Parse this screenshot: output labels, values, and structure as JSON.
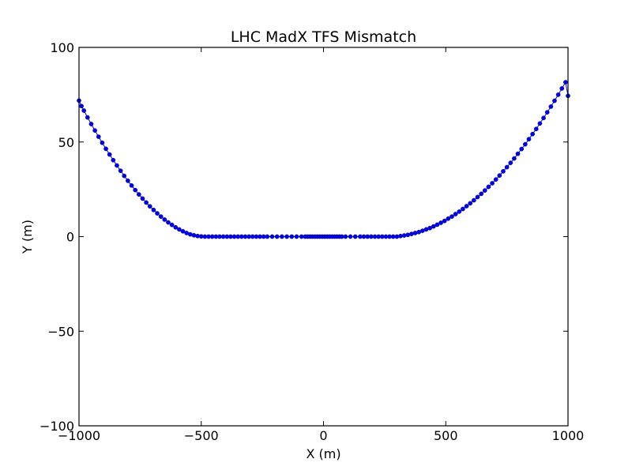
{
  "chart_data": {
    "type": "line",
    "title": "LHC MadX TFS Mismatch",
    "xlabel": "X (m)",
    "ylabel": "Y (m)",
    "xlim": [
      -1000,
      1000
    ],
    "ylim": [
      -100,
      100
    ],
    "xticks": [
      -1000,
      -500,
      0,
      500,
      1000
    ],
    "yticks": [
      -100,
      -50,
      0,
      50,
      100
    ],
    "xtick_labels": [
      "−1000",
      "−500",
      "0",
      "500",
      "1000"
    ],
    "ytick_labels": [
      "−100",
      "−50",
      "0",
      "50",
      "100"
    ],
    "grid": false,
    "series": [
      {
        "color": "#0000ff",
        "marker": "circle",
        "x": [
          -1000,
          -990,
          -980,
          -965,
          -950,
          -935,
          -920,
          -905,
          -890,
          -875,
          -860,
          -845,
          -830,
          -815,
          -800,
          -785,
          -770,
          -755,
          -740,
          -725,
          -710,
          -695,
          -680,
          -665,
          -650,
          -635,
          -620,
          -605,
          -590,
          -575,
          -560,
          -545,
          -530,
          -515,
          -500,
          -485,
          -470,
          -455,
          -440,
          -425,
          -410,
          -395,
          -380,
          -365,
          -350,
          -335,
          -320,
          -305,
          -290,
          -275,
          -260,
          -245,
          -230,
          -210,
          -190,
          -170,
          -150,
          -130,
          -110,
          -90,
          -75,
          -65,
          -55,
          -45,
          -35,
          -25,
          -15,
          -5,
          5,
          15,
          25,
          35,
          45,
          55,
          65,
          75,
          90,
          110,
          130,
          150,
          165,
          180,
          195,
          210,
          225,
          240,
          255,
          270,
          285,
          300,
          315,
          330,
          345,
          360,
          375,
          390,
          405,
          420,
          435,
          450,
          465,
          480,
          495,
          510,
          525,
          540,
          555,
          570,
          585,
          600,
          615,
          630,
          645,
          660,
          675,
          690,
          705,
          720,
          735,
          750,
          765,
          780,
          795,
          810,
          825,
          840,
          855,
          870,
          885,
          900,
          915,
          930,
          945,
          960,
          975,
          990,
          1000
        ],
        "y": [
          71.9,
          69.0,
          66.6,
          63.0,
          59.5,
          56.1,
          52.8,
          49.6,
          46.4,
          43.4,
          40.4,
          37.6,
          34.8,
          32.1,
          29.5,
          27.0,
          24.6,
          22.3,
          20.1,
          18.0,
          16.0,
          14.1,
          12.3,
          10.6,
          9.0,
          7.5,
          6.2,
          4.9,
          3.8,
          2.8,
          1.9,
          1.2,
          0.7,
          0.3,
          0.1,
          0.0,
          0.0,
          0.0,
          0.0,
          0.0,
          0.0,
          0.0,
          0.0,
          0.0,
          0.0,
          0.0,
          0.0,
          0.0,
          0.0,
          0.0,
          0.0,
          0.0,
          0.0,
          0.0,
          0.0,
          0.0,
          0.0,
          0.0,
          0.0,
          0.0,
          0.0,
          0.0,
          0.0,
          0.0,
          0.0,
          0.0,
          0.0,
          0.0,
          0.0,
          0.0,
          0.0,
          0.0,
          0.0,
          0.0,
          0.0,
          0.0,
          0.0,
          0.0,
          0.0,
          0.0,
          0.0,
          0.0,
          0.0,
          0.0,
          0.0,
          0.0,
          0.0,
          0.0,
          0.0,
          0.0,
          0.3,
          0.6,
          0.9,
          1.4,
          1.9,
          2.4,
          3.1,
          3.8,
          4.5,
          5.4,
          6.3,
          7.3,
          8.3,
          9.5,
          10.6,
          11.9,
          13.2,
          14.6,
          16.1,
          17.6,
          19.2,
          20.9,
          22.6,
          24.4,
          26.3,
          28.2,
          30.2,
          32.3,
          34.5,
          36.7,
          39.0,
          41.3,
          43.8,
          46.3,
          48.8,
          51.5,
          54.2,
          56.9,
          59.8,
          62.7,
          65.7,
          68.7,
          71.8,
          75.0,
          78.3,
          81.6,
          74.4
        ]
      }
    ]
  }
}
